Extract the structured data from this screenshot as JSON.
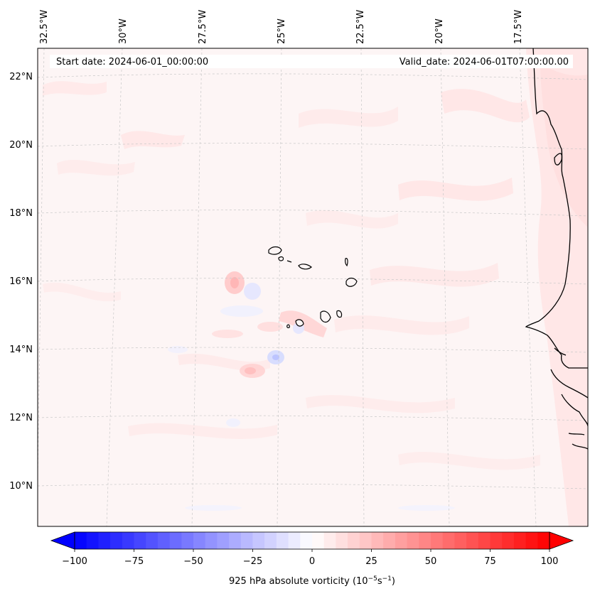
{
  "map": {
    "start_date": "Start date: 2024-06-01_00:00:00",
    "valid_date": "Valid_date: 2024-06-01T07:00:00.00",
    "lon_labels": [
      "32.5°W",
      "30°W",
      "27.5°W",
      "25°W",
      "22.5°W",
      "20°W",
      "17.5°W"
    ],
    "lat_labels": [
      "22°N",
      "20°N",
      "18°N",
      "16°N",
      "14°N",
      "12°N",
      "10°N"
    ],
    "field_colors": {
      "background": "#fdf5f5",
      "positive": "#ffe1e1",
      "positive_strong": "#ffc4c4",
      "negative": "#eef0ff",
      "negative_strong": "#d4daff",
      "coast": "#000000",
      "grid": "#c8c8c8"
    }
  },
  "colorbar": {
    "label": "925 hPa absolute vorticity (10",
    "label_exp": "−5",
    "label_unit": "s",
    "label_exp2": "−1",
    "label_close": ")",
    "min": -100,
    "max": 100,
    "levels": 40,
    "ticks": [
      "−100",
      "−75",
      "−50",
      "−25",
      "0",
      "25",
      "50",
      "75",
      "100"
    ]
  }
}
